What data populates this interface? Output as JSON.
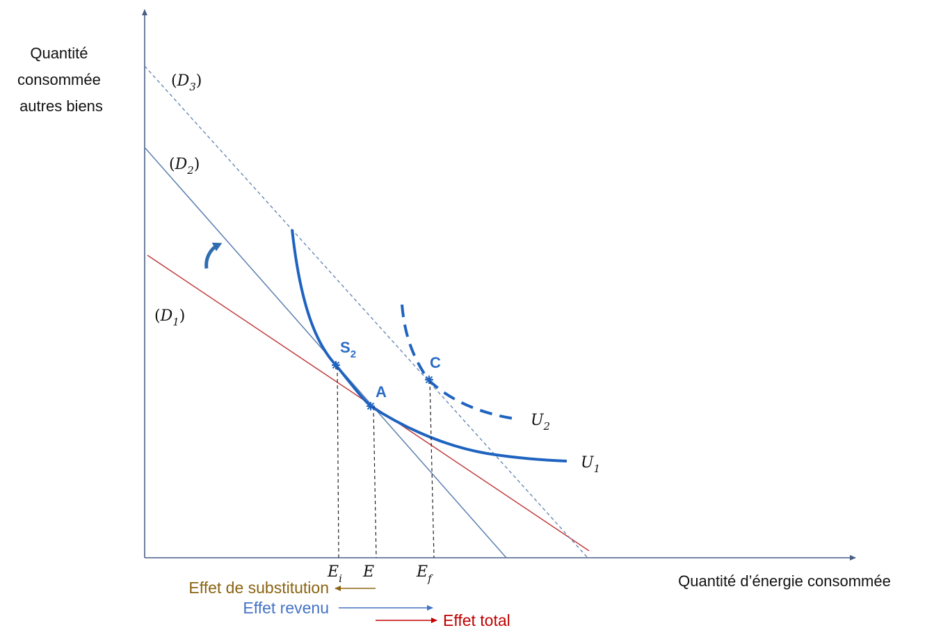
{
  "axes": {
    "y_label_lines": [
      "Quantité",
      "consommée",
      "autres biens"
    ],
    "x_label": "Quantité d’énergie consommée"
  },
  "lines": {
    "d1": {
      "base": "D",
      "sub": "1",
      "color": "#c0393b"
    },
    "d2": {
      "base": "D",
      "sub": "2",
      "color": "#5b7fb0"
    },
    "d3": {
      "base": "D",
      "sub": "3",
      "color": "#5b7fb0"
    }
  },
  "curves": {
    "u1": {
      "base": "U",
      "sub": "1",
      "color": "#1f63c0"
    },
    "u2": {
      "base": "U",
      "sub": "2",
      "color": "#1f63c0"
    }
  },
  "points": {
    "s2": {
      "base": "S",
      "sub": "2"
    },
    "a": {
      "label": "A"
    },
    "c": {
      "label": "C"
    }
  },
  "ticks": {
    "ei": {
      "base": "E",
      "sub": "i"
    },
    "e": {
      "base": "E"
    },
    "ef": {
      "base": "E",
      "sub": "f"
    }
  },
  "effects": {
    "substitution": {
      "label": "Effet de substitution",
      "color": "#8a6412"
    },
    "revenu": {
      "label": "Effet revenu",
      "color": "#4472c4"
    },
    "total": {
      "label": "Effet total",
      "color": "#c00000"
    }
  },
  "colors": {
    "axis": "#4a5f86",
    "marker": "#1f63c0"
  }
}
